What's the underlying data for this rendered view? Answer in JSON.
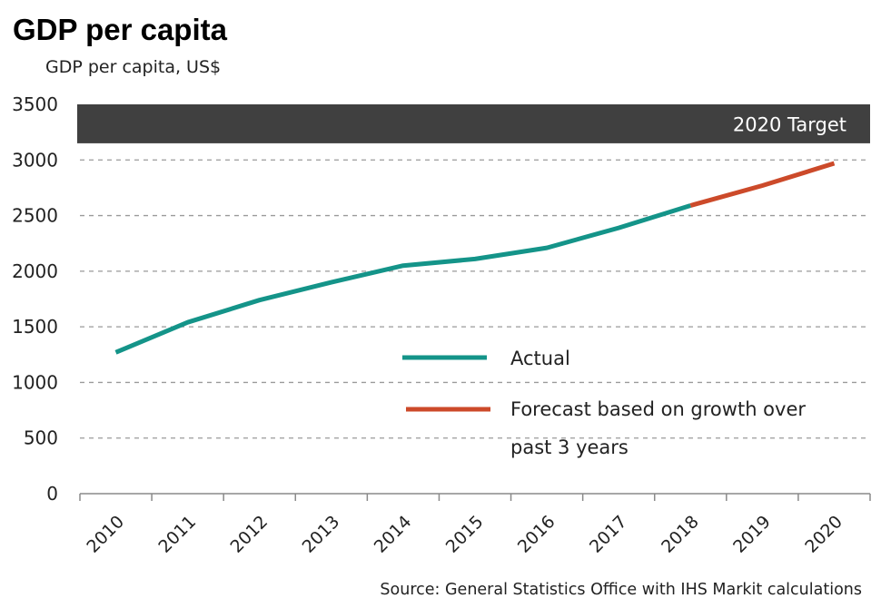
{
  "chart_data": {
    "type": "line",
    "title": "GDP per capita",
    "ylabel": "GDP per capita, US$",
    "ylim": [
      0,
      3500
    ],
    "yticks": [
      0,
      500,
      1000,
      1500,
      2000,
      2500,
      3000,
      3500
    ],
    "categories": [
      "2010",
      "2011",
      "2012",
      "2013",
      "2014",
      "2015",
      "2016",
      "2017",
      "2018",
      "2019",
      "2020"
    ],
    "grid": "horizontal dashed",
    "band": {
      "label": "2020 Target",
      "from": 3150,
      "to": 3500,
      "color": "#404040"
    },
    "series": [
      {
        "name": "Actual",
        "color": "#149489",
        "x": [
          "2010",
          "2011",
          "2012",
          "2013",
          "2014",
          "2015",
          "2016",
          "2017",
          "2018"
        ],
        "values": [
          1270,
          1540,
          1740,
          1900,
          2050,
          2110,
          2210,
          2390,
          2590
        ]
      },
      {
        "name": "Forecast based on growth over past 3 years",
        "name_lines": [
          "Forecast based on growth over",
          "past 3 years"
        ],
        "color": "#cc4a2a",
        "x": [
          "2018",
          "2019",
          "2020"
        ],
        "values": [
          2590,
          2770,
          2970
        ]
      }
    ],
    "legend": "center-right",
    "source": "Source: General Statistics Office with IHS Markit calculations"
  }
}
